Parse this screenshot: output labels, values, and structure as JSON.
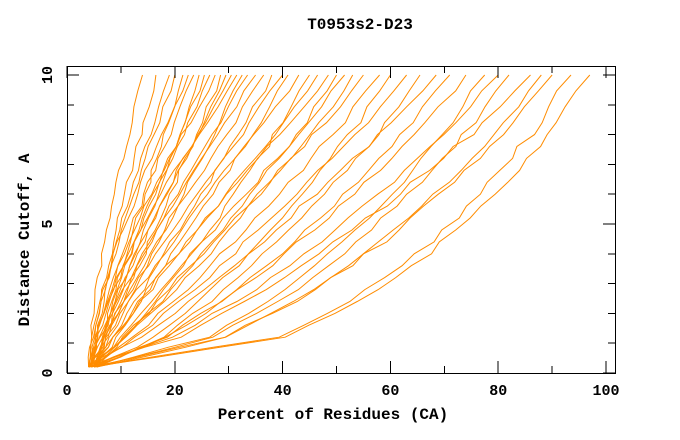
{
  "window": {
    "background": "#ffffff"
  },
  "chart_data": {
    "type": "line",
    "title": "T0953s2-D23",
    "xlabel": "Percent of Residues (CA)",
    "ylabel": "Distance Cutoff, A",
    "xlim": [
      0,
      100
    ],
    "ylim": [
      0,
      10
    ],
    "grid": false,
    "legend": "none",
    "frame": "full box, ticks point inward on all four sides",
    "curve_color": "#FF8C00",
    "axis_color": "#000000",
    "xticks_major": [
      0,
      20,
      40,
      60,
      80,
      100
    ],
    "xticks_minor": [
      10,
      30,
      50,
      70,
      90
    ],
    "yticks_major": [
      0,
      5,
      10
    ],
    "yticks_minor": [
      1,
      2,
      3,
      4,
      6,
      7,
      8,
      9
    ],
    "x_tick_labels": [
      "0",
      "20",
      "40",
      "60",
      "80",
      "100"
    ],
    "y_tick_labels": [
      "0",
      "5",
      "10"
    ],
    "n_curves": 45,
    "cutoffs": [
      0.2,
      1.2,
      2.4,
      3.6,
      4.8,
      6.0,
      7.2,
      8.4,
      10.0
    ],
    "series_format": "each series = percent of residues (CA) at each distance cutoff in 'cutoffs'",
    "series": [
      [
        4,
        4.4,
        5.1,
        6.3,
        7.5,
        8.7,
        10.4,
        12.1,
        14
      ],
      [
        4.5,
        5.1,
        6.3,
        7.6,
        9.1,
        10.7,
        12.5,
        14.3,
        16.5
      ],
      [
        5,
        5.5,
        6.7,
        8.1,
        9.8,
        11.7,
        13.8,
        16.1,
        19
      ],
      [
        4,
        4.8,
        6.4,
        8.1,
        10.1,
        12.3,
        14.6,
        17,
        20
      ],
      [
        5.5,
        6.7,
        8.4,
        10.3,
        12.4,
        14.5,
        16.6,
        18.8,
        21.5
      ],
      [
        4,
        4.7,
        6.2,
        8.1,
        10.4,
        12.9,
        15.7,
        18.7,
        22.5
      ],
      [
        4.5,
        5.5,
        7.3,
        9.4,
        11.8,
        14.4,
        17.1,
        20,
        23.5
      ],
      [
        5,
        7,
        9.5,
        11.9,
        14.3,
        16.8,
        19.2,
        21.7,
        24.5
      ],
      [
        4,
        5.6,
        8,
        10.5,
        13.2,
        16,
        18.9,
        21.9,
        25.5
      ],
      [
        5.5,
        6.6,
        8.6,
        10.9,
        13.6,
        16.4,
        19.4,
        22.6,
        26.5
      ],
      [
        4.5,
        5.4,
        7.2,
        9.6,
        12.4,
        15.6,
        19,
        22.8,
        27.5
      ],
      [
        5,
        7.4,
        10.4,
        13.3,
        16.3,
        19.2,
        22.1,
        25.1,
        28.5
      ],
      [
        4,
        5.9,
        8.7,
        11.7,
        14.9,
        18.3,
        21.7,
        25.3,
        29.5
      ],
      [
        5.5,
        6.8,
        9.2,
        12,
        15.1,
        18.5,
        22.1,
        25.9,
        30.5
      ],
      [
        4.5,
        5.5,
        7.7,
        10.5,
        13.8,
        17.5,
        21.6,
        26,
        31.5
      ],
      [
        5,
        7.9,
        11.3,
        14.7,
        18.2,
        21.6,
        25,
        28.5,
        32.5
      ],
      [
        4,
        6.2,
        9.4,
        12.9,
        16.7,
        20.5,
        24.5,
        28.6,
        33.5
      ],
      [
        5.5,
        7.1,
        9.8,
        13.1,
        16.8,
        20.8,
        25.1,
        29.5,
        35
      ],
      [
        4.5,
        6.9,
        10.4,
        14.2,
        18.2,
        22.4,
        26.7,
        31.2,
        36.5
      ],
      [
        5,
        8.4,
        12.6,
        16.7,
        20.8,
        24.9,
        29.1,
        33.2,
        38
      ],
      [
        4,
        6.7,
        10.6,
        14.9,
        19.4,
        24.2,
        29,
        34,
        40
      ],
      [
        5.5,
        9.2,
        13.6,
        18.1,
        22.5,
        26.9,
        31.4,
        35.8,
        41
      ],
      [
        4.5,
        7.4,
        11.6,
        16.2,
        21,
        26.1,
        31.3,
        36.6,
        43
      ],
      [
        5,
        10.8,
        16.4,
        21.6,
        26.4,
        31.1,
        35.6,
        40,
        45
      ],
      [
        4,
        8.4,
        13.7,
        19,
        24.4,
        29.7,
        35,
        40.3,
        46.5
      ],
      [
        5.5,
        8.7,
        13.4,
        18.5,
        23.9,
        29.6,
        35.4,
        41.4,
        48.5
      ],
      [
        4.5,
        11.1,
        17.5,
        23.3,
        28.8,
        34.2,
        39.3,
        44.3,
        50
      ],
      [
        5,
        9.8,
        15.6,
        21.5,
        27.3,
        33.1,
        38.9,
        44.7,
        51.5
      ],
      [
        4,
        11.2,
        18,
        24.3,
        30.2,
        36,
        41.4,
        46.8,
        53
      ],
      [
        5.5,
        10.6,
        16.8,
        23,
        29.2,
        35.4,
        41.6,
        47.8,
        55
      ],
      [
        4.5,
        12.3,
        19.8,
        26.7,
        33.1,
        39.4,
        45.4,
        51.3,
        58
      ],
      [
        5,
        16.3,
        24.6,
        31.6,
        37.8,
        43.7,
        49.1,
        54.2,
        60
      ],
      [
        4,
        12.6,
        20.9,
        28.4,
        35.6,
        42.5,
        49.1,
        55.6,
        63
      ],
      [
        5.5,
        17.8,
        26.9,
        34.5,
        41.3,
        47.7,
        53.6,
        59.2,
        65.5
      ],
      [
        4.5,
        13.8,
        22.8,
        31,
        38.7,
        46.2,
        53.1,
        60.4,
        68.5
      ],
      [
        5,
        18.5,
        28.5,
        36.9,
        44.4,
        51.4,
        57.9,
        64.1,
        71
      ],
      [
        4,
        18.4,
        28.9,
        37.8,
        45.8,
        53.2,
        60.1,
        66.7,
        74
      ],
      [
        5.5,
        26.2,
        37.5,
        46.2,
        53.5,
        60.1,
        66,
        71.5,
        77.5
      ],
      [
        4.5,
        20,
        31.4,
        41,
        49.6,
        57.6,
        65.1,
        72.1,
        80
      ],
      [
        5,
        27.2,
        39.2,
        48.5,
        56.4,
        63.4,
        69.7,
        75.6,
        82
      ],
      [
        4,
        20.8,
        33.2,
        43.6,
        53,
        61.6,
        69.8,
        77.4,
        86
      ],
      [
        5.5,
        29.3,
        42.1,
        52.1,
        60.5,
        68,
        74.8,
        81.2,
        88
      ],
      [
        4.5,
        29.1,
        42.5,
        52.8,
        61.5,
        69.3,
        76.3,
        82.9,
        90
      ],
      [
        5,
        39.2,
        52.6,
        62.2,
        70,
        76.6,
        82.5,
        87.8,
        93.5
      ],
      [
        4,
        40,
        54,
        64.1,
        72.3,
        79.2,
        85.5,
        91,
        97
      ]
    ]
  }
}
